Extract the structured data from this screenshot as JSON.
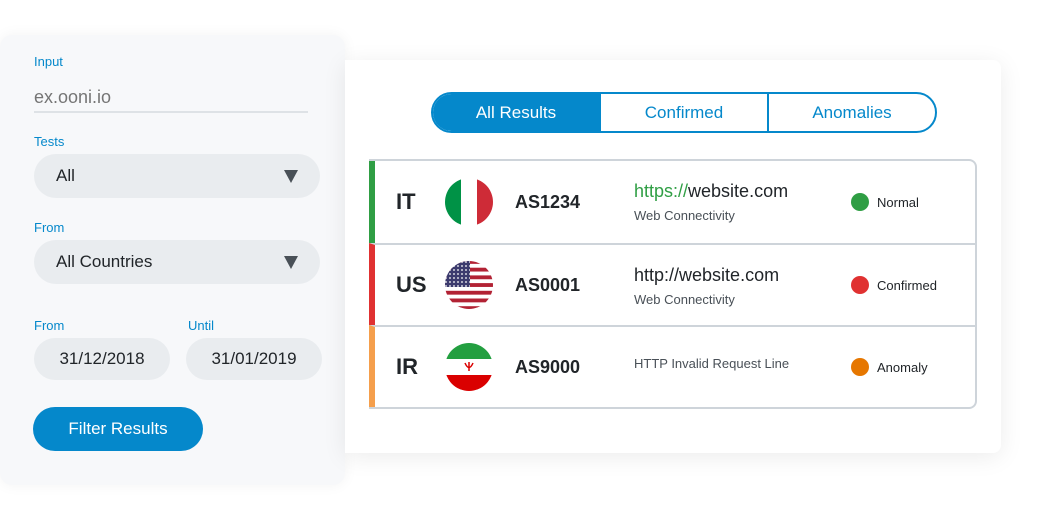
{
  "filters": {
    "input_label": "Input",
    "input_placeholder": "ex.ooni.io",
    "tests_label": "Tests",
    "tests_value": "All",
    "from_country_label": "From",
    "country_value": "All Countries",
    "from_date_label": "From",
    "until_label": "Until",
    "from_date": "31/12/2018",
    "until_date": "31/01/2019",
    "button": "Filter Results"
  },
  "tabs": [
    {
      "label": "All Results",
      "active": true
    },
    {
      "label": "Confirmed",
      "active": false
    },
    {
      "label": "Anomalies",
      "active": false
    }
  ],
  "colors": {
    "accent": "#0588cb",
    "normal": "#2f9e44",
    "confirmed": "#e03131",
    "anomaly": "#e67700",
    "anomaly_bar": "#f59f4c"
  },
  "results": [
    {
      "country": "IT",
      "flag": "italy-flag",
      "asn": "AS1234",
      "url_proto": "https://",
      "url_host": "website.com",
      "test": "Web Connectivity",
      "status": "Normal"
    },
    {
      "country": "US",
      "flag": "us-flag",
      "asn": "AS0001",
      "url_proto": "http://",
      "url_host": "website.com",
      "test": "Web Connectivity",
      "status": "Confirmed"
    },
    {
      "country": "IR",
      "flag": "iran-flag",
      "asn": "AS9000",
      "test": "HTTP Invalid Request Line",
      "status": "Anomaly"
    }
  ]
}
